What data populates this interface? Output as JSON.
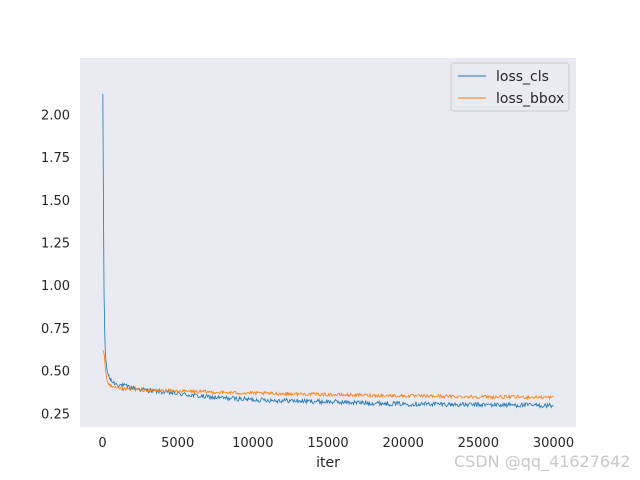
{
  "chart_data": {
    "type": "line",
    "title": "",
    "xlabel": "iter",
    "ylabel": "",
    "xlim": [
      -1500,
      31500
    ],
    "ylim": [
      0.17,
      2.33
    ],
    "xticks": [
      0,
      5000,
      10000,
      15000,
      20000,
      25000,
      30000
    ],
    "xtick_labels": [
      "0",
      "5000",
      "10000",
      "15000",
      "20000",
      "25000",
      "30000"
    ],
    "yticks": [
      0.25,
      0.5,
      0.75,
      1.0,
      1.25,
      1.5,
      1.75,
      2.0
    ],
    "ytick_labels": [
      "0.25",
      "0.50",
      "0.75",
      "1.00",
      "1.25",
      "1.50",
      "1.75",
      "2.00"
    ],
    "grid": false,
    "background": "#eaeaf2",
    "legend_position": "top-right",
    "series": [
      {
        "name": "loss_cls",
        "color": "#1f77b4",
        "x": [
          20,
          50,
          100,
          150,
          200,
          300,
          400,
          500,
          700,
          1000,
          1500,
          2000,
          2500,
          3000,
          4000,
          5000,
          6000,
          7000,
          8000,
          9000,
          10000,
          12000,
          14000,
          16000,
          18000,
          20000,
          22000,
          24000,
          26000,
          28000,
          30000
        ],
        "y": [
          2.12,
          1.6,
          0.95,
          0.7,
          0.58,
          0.5,
          0.47,
          0.45,
          0.43,
          0.42,
          0.41,
          0.4,
          0.39,
          0.385,
          0.375,
          0.365,
          0.355,
          0.345,
          0.34,
          0.335,
          0.33,
          0.325,
          0.32,
          0.315,
          0.31,
          0.305,
          0.305,
          0.3,
          0.3,
          0.298,
          0.295
        ]
      },
      {
        "name": "loss_bbox",
        "color": "#ff7f0e",
        "x": [
          20,
          100,
          200,
          300,
          400,
          500,
          700,
          1000,
          1500,
          2000,
          3000,
          4000,
          5000,
          6000,
          7000,
          8000,
          10000,
          12000,
          14000,
          16000,
          18000,
          20000,
          22000,
          24000,
          26000,
          28000,
          30000
        ],
        "y": [
          0.62,
          0.6,
          0.5,
          0.44,
          0.42,
          0.41,
          0.4,
          0.395,
          0.39,
          0.39,
          0.385,
          0.383,
          0.38,
          0.378,
          0.375,
          0.372,
          0.368,
          0.365,
          0.362,
          0.358,
          0.355,
          0.352,
          0.35,
          0.348,
          0.346,
          0.345,
          0.343
        ]
      }
    ]
  },
  "watermark": "CSDN @qq_41627642"
}
